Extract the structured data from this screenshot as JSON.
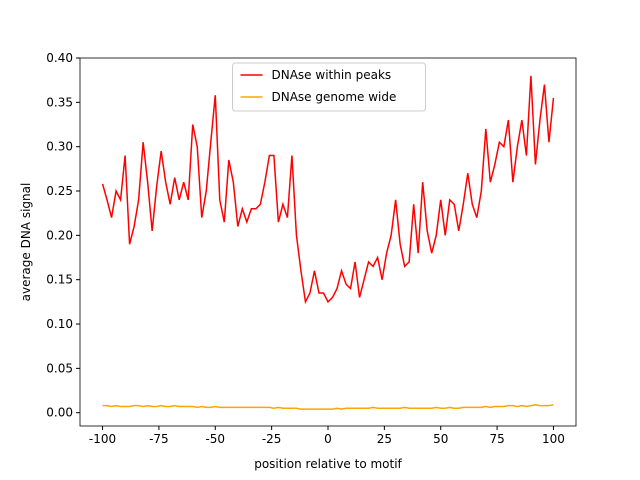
{
  "chart_data": {
    "type": "line",
    "xlabel": "position relative to motif",
    "ylabel": "average DNA signal",
    "x": [
      -100,
      -98,
      -96,
      -94,
      -92,
      -90,
      -88,
      -86,
      -84,
      -82,
      -80,
      -78,
      -76,
      -74,
      -72,
      -70,
      -68,
      -66,
      -64,
      -62,
      -60,
      -58,
      -56,
      -54,
      -52,
      -50,
      -48,
      -46,
      -44,
      -42,
      -40,
      -38,
      -36,
      -34,
      -32,
      -30,
      -28,
      -26,
      -24,
      -22,
      -20,
      -18,
      -16,
      -14,
      -12,
      -10,
      -8,
      -6,
      -4,
      -2,
      0,
      2,
      4,
      6,
      8,
      10,
      12,
      14,
      16,
      18,
      20,
      22,
      24,
      26,
      28,
      30,
      32,
      34,
      36,
      38,
      40,
      42,
      44,
      46,
      48,
      50,
      52,
      54,
      56,
      58,
      60,
      62,
      64,
      66,
      68,
      70,
      72,
      74,
      76,
      78,
      80,
      82,
      84,
      86,
      88,
      90,
      92,
      94,
      96,
      98,
      100
    ],
    "series": [
      {
        "name": "DNAse within peaks",
        "color": "#ff0000",
        "values": [
          0.258,
          0.24,
          0.22,
          0.25,
          0.24,
          0.29,
          0.19,
          0.21,
          0.24,
          0.305,
          0.26,
          0.205,
          0.255,
          0.295,
          0.26,
          0.235,
          0.265,
          0.24,
          0.26,
          0.24,
          0.325,
          0.3,
          0.22,
          0.25,
          0.305,
          0.358,
          0.24,
          0.215,
          0.285,
          0.26,
          0.21,
          0.23,
          0.215,
          0.23,
          0.23,
          0.235,
          0.26,
          0.29,
          0.29,
          0.215,
          0.235,
          0.22,
          0.29,
          0.2,
          0.16,
          0.125,
          0.135,
          0.16,
          0.135,
          0.135,
          0.125,
          0.13,
          0.14,
          0.16,
          0.145,
          0.14,
          0.17,
          0.13,
          0.15,
          0.17,
          0.165,
          0.175,
          0.15,
          0.18,
          0.2,
          0.24,
          0.19,
          0.165,
          0.17,
          0.235,
          0.18,
          0.26,
          0.205,
          0.18,
          0.2,
          0.24,
          0.2,
          0.24,
          0.235,
          0.205,
          0.235,
          0.27,
          0.235,
          0.22,
          0.25,
          0.32,
          0.26,
          0.28,
          0.305,
          0.3,
          0.33,
          0.26,
          0.3,
          0.33,
          0.29,
          0.38,
          0.28,
          0.33,
          0.37,
          0.305,
          0.355
        ]
      },
      {
        "name": "DNAse genome wide",
        "color": "#ffa500",
        "values": [
          0.008,
          0.008,
          0.007,
          0.008,
          0.007,
          0.007,
          0.007,
          0.008,
          0.008,
          0.007,
          0.008,
          0.007,
          0.007,
          0.008,
          0.007,
          0.007,
          0.008,
          0.007,
          0.007,
          0.007,
          0.007,
          0.006,
          0.007,
          0.006,
          0.006,
          0.007,
          0.006,
          0.006,
          0.006,
          0.006,
          0.006,
          0.006,
          0.006,
          0.006,
          0.006,
          0.006,
          0.006,
          0.006,
          0.005,
          0.006,
          0.005,
          0.005,
          0.005,
          0.005,
          0.004,
          0.004,
          0.004,
          0.004,
          0.004,
          0.004,
          0.004,
          0.004,
          0.005,
          0.004,
          0.005,
          0.005,
          0.005,
          0.005,
          0.005,
          0.005,
          0.006,
          0.005,
          0.005,
          0.005,
          0.005,
          0.005,
          0.005,
          0.006,
          0.005,
          0.005,
          0.005,
          0.005,
          0.005,
          0.005,
          0.006,
          0.005,
          0.005,
          0.006,
          0.005,
          0.005,
          0.006,
          0.006,
          0.006,
          0.006,
          0.006,
          0.007,
          0.006,
          0.007,
          0.007,
          0.007,
          0.008,
          0.008,
          0.007,
          0.008,
          0.007,
          0.008,
          0.009,
          0.008,
          0.008,
          0.008,
          0.009
        ]
      }
    ],
    "xlim": [
      -110,
      110
    ],
    "ylim": [
      -0.015,
      0.4
    ],
    "xticks": [
      -100,
      -75,
      -50,
      -25,
      0,
      25,
      50,
      75,
      100
    ],
    "yticks": [
      {
        "value": 0,
        "label": "0.00"
      },
      {
        "value": 0.05,
        "label": "0.05"
      },
      {
        "value": 0.1,
        "label": "0.10"
      },
      {
        "value": 0.15,
        "label": "0.15"
      },
      {
        "value": 0.2,
        "label": "0.20"
      },
      {
        "value": 0.25,
        "label": "0.25"
      },
      {
        "value": 0.3,
        "label": "0.30"
      },
      {
        "value": 0.35,
        "label": "0.35"
      },
      {
        "value": 0.4,
        "label": "0.40"
      }
    ],
    "legend": "upper center"
  }
}
